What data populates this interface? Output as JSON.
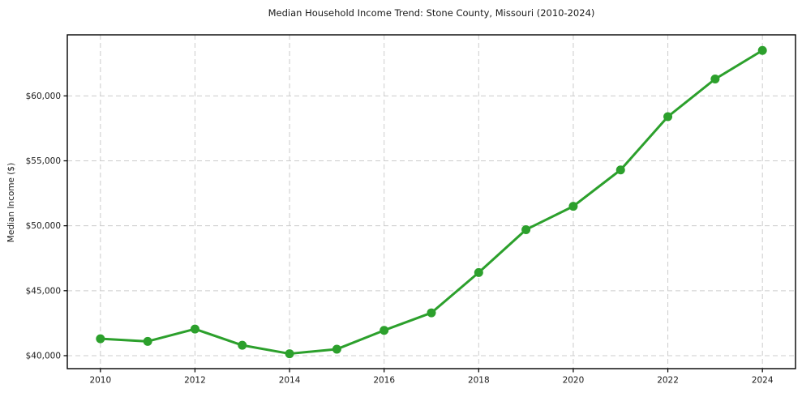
{
  "chart_data": {
    "type": "line",
    "title": "Median Household Income Trend: Stone County, Missouri (2010-2024)",
    "xlabel": "",
    "ylabel": "Median Income ($)",
    "x": [
      2010,
      2011,
      2012,
      2013,
      2014,
      2015,
      2016,
      2017,
      2018,
      2019,
      2020,
      2021,
      2022,
      2023,
      2024
    ],
    "values": [
      41300,
      41100,
      42050,
      40800,
      40150,
      40500,
      41950,
      43300,
      46400,
      49700,
      51500,
      54300,
      58400,
      61300,
      63500
    ],
    "x_ticks": [
      2010,
      2012,
      2014,
      2016,
      2018,
      2020,
      2022,
      2024
    ],
    "x_tick_labels": [
      "2010",
      "2012",
      "2014",
      "2016",
      "2018",
      "2020",
      "2022",
      "2024"
    ],
    "y_ticks": [
      40000,
      45000,
      50000,
      55000,
      60000
    ],
    "y_tick_labels": [
      "$40,000",
      "$45,000",
      "$50,000",
      "$55,000",
      "$60,000"
    ],
    "xlim": [
      2009.3,
      2024.7
    ],
    "ylim": [
      39000,
      64700
    ],
    "grid": true,
    "grid_style": "dashed",
    "legend": "none",
    "marker": "circle"
  },
  "colors": {
    "line": "#2ca02c",
    "grid": "#cccccc",
    "spine": "#000000",
    "text": "#1a1a1a",
    "background": "#ffffff"
  }
}
